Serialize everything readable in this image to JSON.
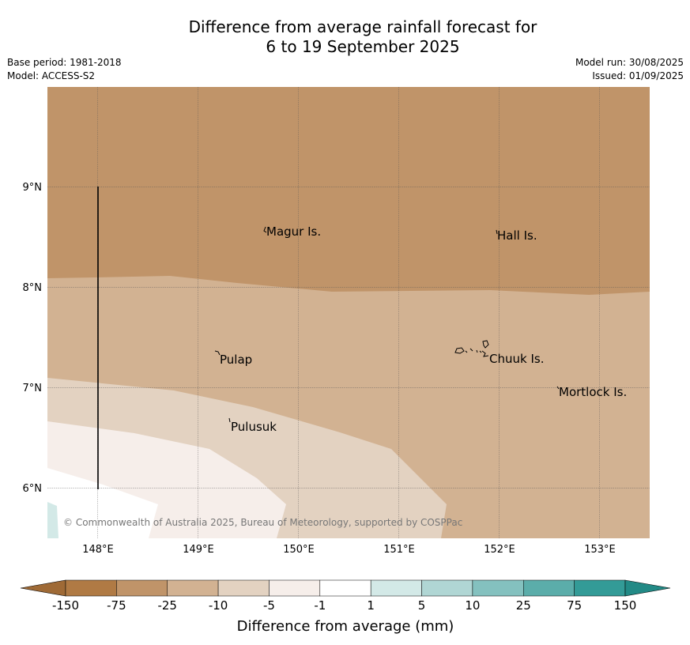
{
  "header": {
    "title_line1": "Difference from average rainfall forecast for",
    "title_line2": "6 to 19 September 2025",
    "base_period": "Base period: 1981-2018",
    "model": "Model: ACCESS-S2",
    "model_run": "Model run: 30/08/2025",
    "issued": "Issued: 01/09/2025"
  },
  "map": {
    "lon_ticks": [
      "148°E",
      "149°E",
      "150°E",
      "151°E",
      "152°E",
      "153°E"
    ],
    "lat_ticks": [
      "9°N",
      "8°N",
      "7°N",
      "6°N"
    ],
    "places": [
      {
        "key": "magur",
        "name": "Magur Is."
      },
      {
        "key": "hall",
        "name": "Hall Is."
      },
      {
        "key": "pulap",
        "name": "Pulap"
      },
      {
        "key": "chuuk",
        "name": "Chuuk Is."
      },
      {
        "key": "mortlock",
        "name": "Mortlock Is."
      },
      {
        "key": "pulusuk",
        "name": "Pulusuk"
      }
    ],
    "copyright": "© Commonwealth of Australia 2025, Bureau of Meteorology, supported by COSPPac",
    "region_colors": {
      "much_below": "#c09469",
      "below": "#d2b292",
      "slightly_below": "#e3d2c1",
      "near_below": "#f6eeea",
      "neutral": "#ffffff",
      "slightly_above": "#d3e9e7"
    }
  },
  "colorbar": {
    "title": "Difference from average (mm)",
    "ticks": [
      "-150",
      "-75",
      "-25",
      "-10",
      "-5",
      "-1",
      "1",
      "5",
      "10",
      "25",
      "75",
      "150"
    ],
    "colors": [
      "#b07a44",
      "#c09469",
      "#d2b292",
      "#e3d2c1",
      "#f6eeea",
      "#ffffff",
      "#d3e9e7",
      "#b0d6d4",
      "#84c1bf",
      "#5badaa",
      "#339b97"
    ],
    "extend_low_color": "#9f6a36",
    "extend_high_color": "#228a86"
  }
}
